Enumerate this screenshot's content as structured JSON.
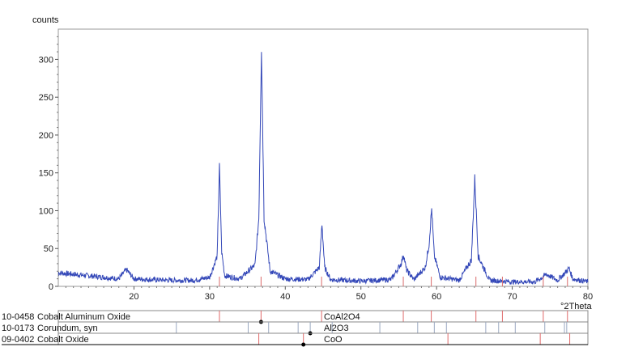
{
  "chart_data": {
    "type": "line",
    "ylabel": "counts",
    "xlabel": "°2Theta",
    "xlim": [
      10,
      80
    ],
    "ylim": [
      0,
      340
    ],
    "x_ticks": [
      20,
      30,
      40,
      50,
      60,
      70,
      80
    ],
    "y_ticks": [
      0,
      50,
      100,
      150,
      200,
      250,
      300
    ],
    "series": [
      {
        "color": "#3347b8",
        "x": [
          10,
          12,
          14,
          16,
          18,
          19,
          20,
          22,
          25,
          28,
          30,
          31,
          31.3,
          31.6,
          32,
          34,
          36,
          36.5,
          36.85,
          37.2,
          38,
          40,
          43,
          44.5,
          44.85,
          45.2,
          46,
          50,
          54,
          55.3,
          55.65,
          56,
          57,
          58.5,
          59,
          59.35,
          59.7,
          60.5,
          63,
          64.6,
          65.05,
          65.5,
          67,
          70,
          73,
          74,
          74.5,
          76,
          77,
          77.5,
          78,
          80
        ],
        "y": [
          18,
          16,
          14,
          12,
          10,
          22,
          10,
          9,
          8,
          8,
          12,
          40,
          158,
          45,
          14,
          10,
          28,
          90,
          315,
          90,
          20,
          10,
          9,
          25,
          83,
          25,
          9,
          7,
          9,
          30,
          42,
          22,
          9,
          25,
          55,
          103,
          40,
          12,
          8,
          35,
          143,
          40,
          8,
          6,
          6,
          12,
          16,
          8,
          18,
          24,
          10,
          6
        ]
      }
    ],
    "reference_patterns": [
      {
        "code": "10-0458",
        "name": "Cobalt Aluminum Oxide",
        "formula": "CoAl2O4",
        "color": "#e06a6a",
        "dot": 36.8,
        "peaks": [
          31.3,
          36.8,
          44.8,
          55.6,
          59.3,
          65.2,
          68.7,
          74.1,
          77.3
        ]
      },
      {
        "code": "10-0173",
        "name": "Corundum, syn",
        "formula": "Al2O3",
        "color": "#9aa8c0",
        "dot": 43.3,
        "peaks": [
          25.6,
          35.1,
          37.8,
          41.7,
          43.3,
          46.2,
          52.5,
          57.5,
          59.7,
          61.3,
          66.5,
          68.2,
          70.4,
          74.3,
          76.9,
          77.2
        ]
      },
      {
        "code": "09-0402",
        "name": "Cobalt Oxide",
        "formula": "CoO",
        "color": "#e06a6a",
        "dot": 42.4,
        "peaks": [
          36.5,
          42.4,
          61.5,
          73.7,
          77.6
        ]
      }
    ]
  }
}
